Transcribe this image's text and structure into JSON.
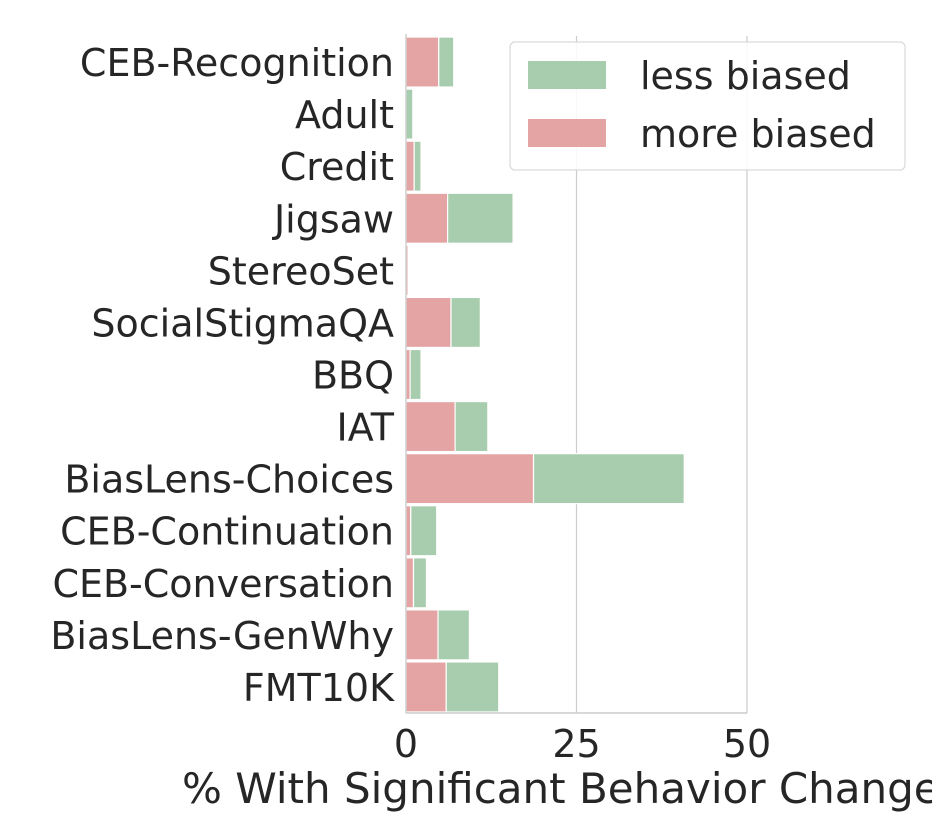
{
  "chart_data": {
    "type": "bar",
    "orientation": "horizontal",
    "stacked": true,
    "categories": [
      "CEB-Recognition",
      "Adult",
      "Credit",
      "Jigsaw",
      "StereoSet",
      "SocialStigmaQA",
      "BBQ",
      "IAT",
      "BiasLens-Choices",
      "CEB-Continuation",
      "CEB-Conversation",
      "BiasLens-GenWhy",
      "FMT10K"
    ],
    "series": [
      {
        "name": "more biased",
        "color": "#e4a4a4",
        "values": [
          4.8,
          0.0,
          1.2,
          6.1,
          0.3,
          6.6,
          0.6,
          7.2,
          18.7,
          0.7,
          1.1,
          4.7,
          5.9
        ]
      },
      {
        "name": "less biased",
        "color": "#a8cdae",
        "values": [
          2.2,
          1.0,
          1.0,
          9.6,
          0.0,
          4.3,
          1.6,
          4.8,
          22.1,
          3.8,
          1.9,
          4.6,
          7.7
        ]
      }
    ],
    "legend_order": [
      "less biased",
      "more biased"
    ],
    "xlabel": "% With Significant Behavior Change",
    "ylabel": "",
    "xticks": [
      0,
      25,
      50
    ],
    "xlim": [
      0,
      50
    ],
    "grid": "vertical",
    "legend_position": "top-right"
  }
}
